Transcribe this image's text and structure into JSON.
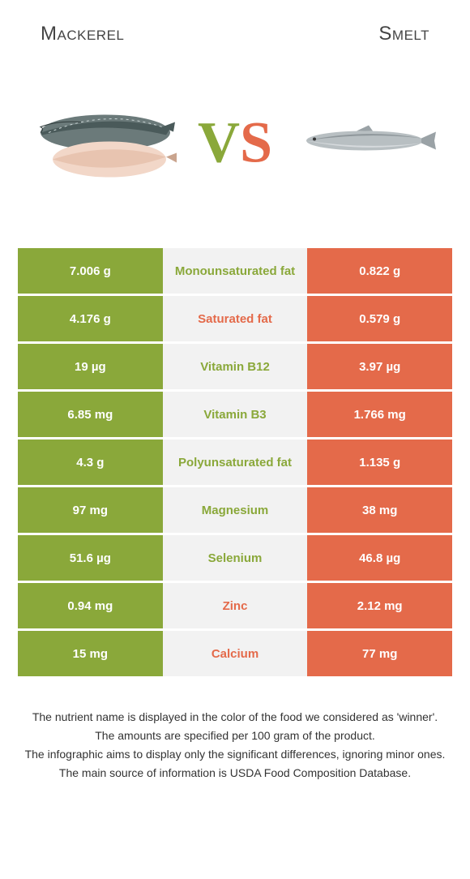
{
  "header": {
    "left_title": "Mackerel",
    "right_title": "Smelt"
  },
  "vs": {
    "v": "V",
    "s": "S"
  },
  "colors": {
    "left": "#8aa83a",
    "right": "#e46a4a",
    "mid_bg": "#f2f2f2"
  },
  "rows": [
    {
      "left": "7.006 g",
      "label": "Monounsaturated fat",
      "right": "0.822 g",
      "winner": "left"
    },
    {
      "left": "4.176 g",
      "label": "Saturated fat",
      "right": "0.579 g",
      "winner": "right"
    },
    {
      "left": "19 µg",
      "label": "Vitamin B12",
      "right": "3.97 µg",
      "winner": "left"
    },
    {
      "left": "6.85 mg",
      "label": "Vitamin B3",
      "right": "1.766 mg",
      "winner": "left"
    },
    {
      "left": "4.3 g",
      "label": "Polyunsaturated fat",
      "right": "1.135 g",
      "winner": "left"
    },
    {
      "left": "97 mg",
      "label": "Magnesium",
      "right": "38 mg",
      "winner": "left"
    },
    {
      "left": "51.6 µg",
      "label": "Selenium",
      "right": "46.8 µg",
      "winner": "left"
    },
    {
      "left": "0.94 mg",
      "label": "Zinc",
      "right": "2.12 mg",
      "winner": "right"
    },
    {
      "left": "15 mg",
      "label": "Calcium",
      "right": "77 mg",
      "winner": "right"
    }
  ],
  "footer": {
    "line1": "The nutrient name is displayed in the color of the food we considered as 'winner'.",
    "line2": "The amounts are specified per 100 gram of the product.",
    "line3": "The infographic aims to display only the significant differences, ignoring minor ones.",
    "line4": "The main source of information is USDA Food Composition Database."
  }
}
